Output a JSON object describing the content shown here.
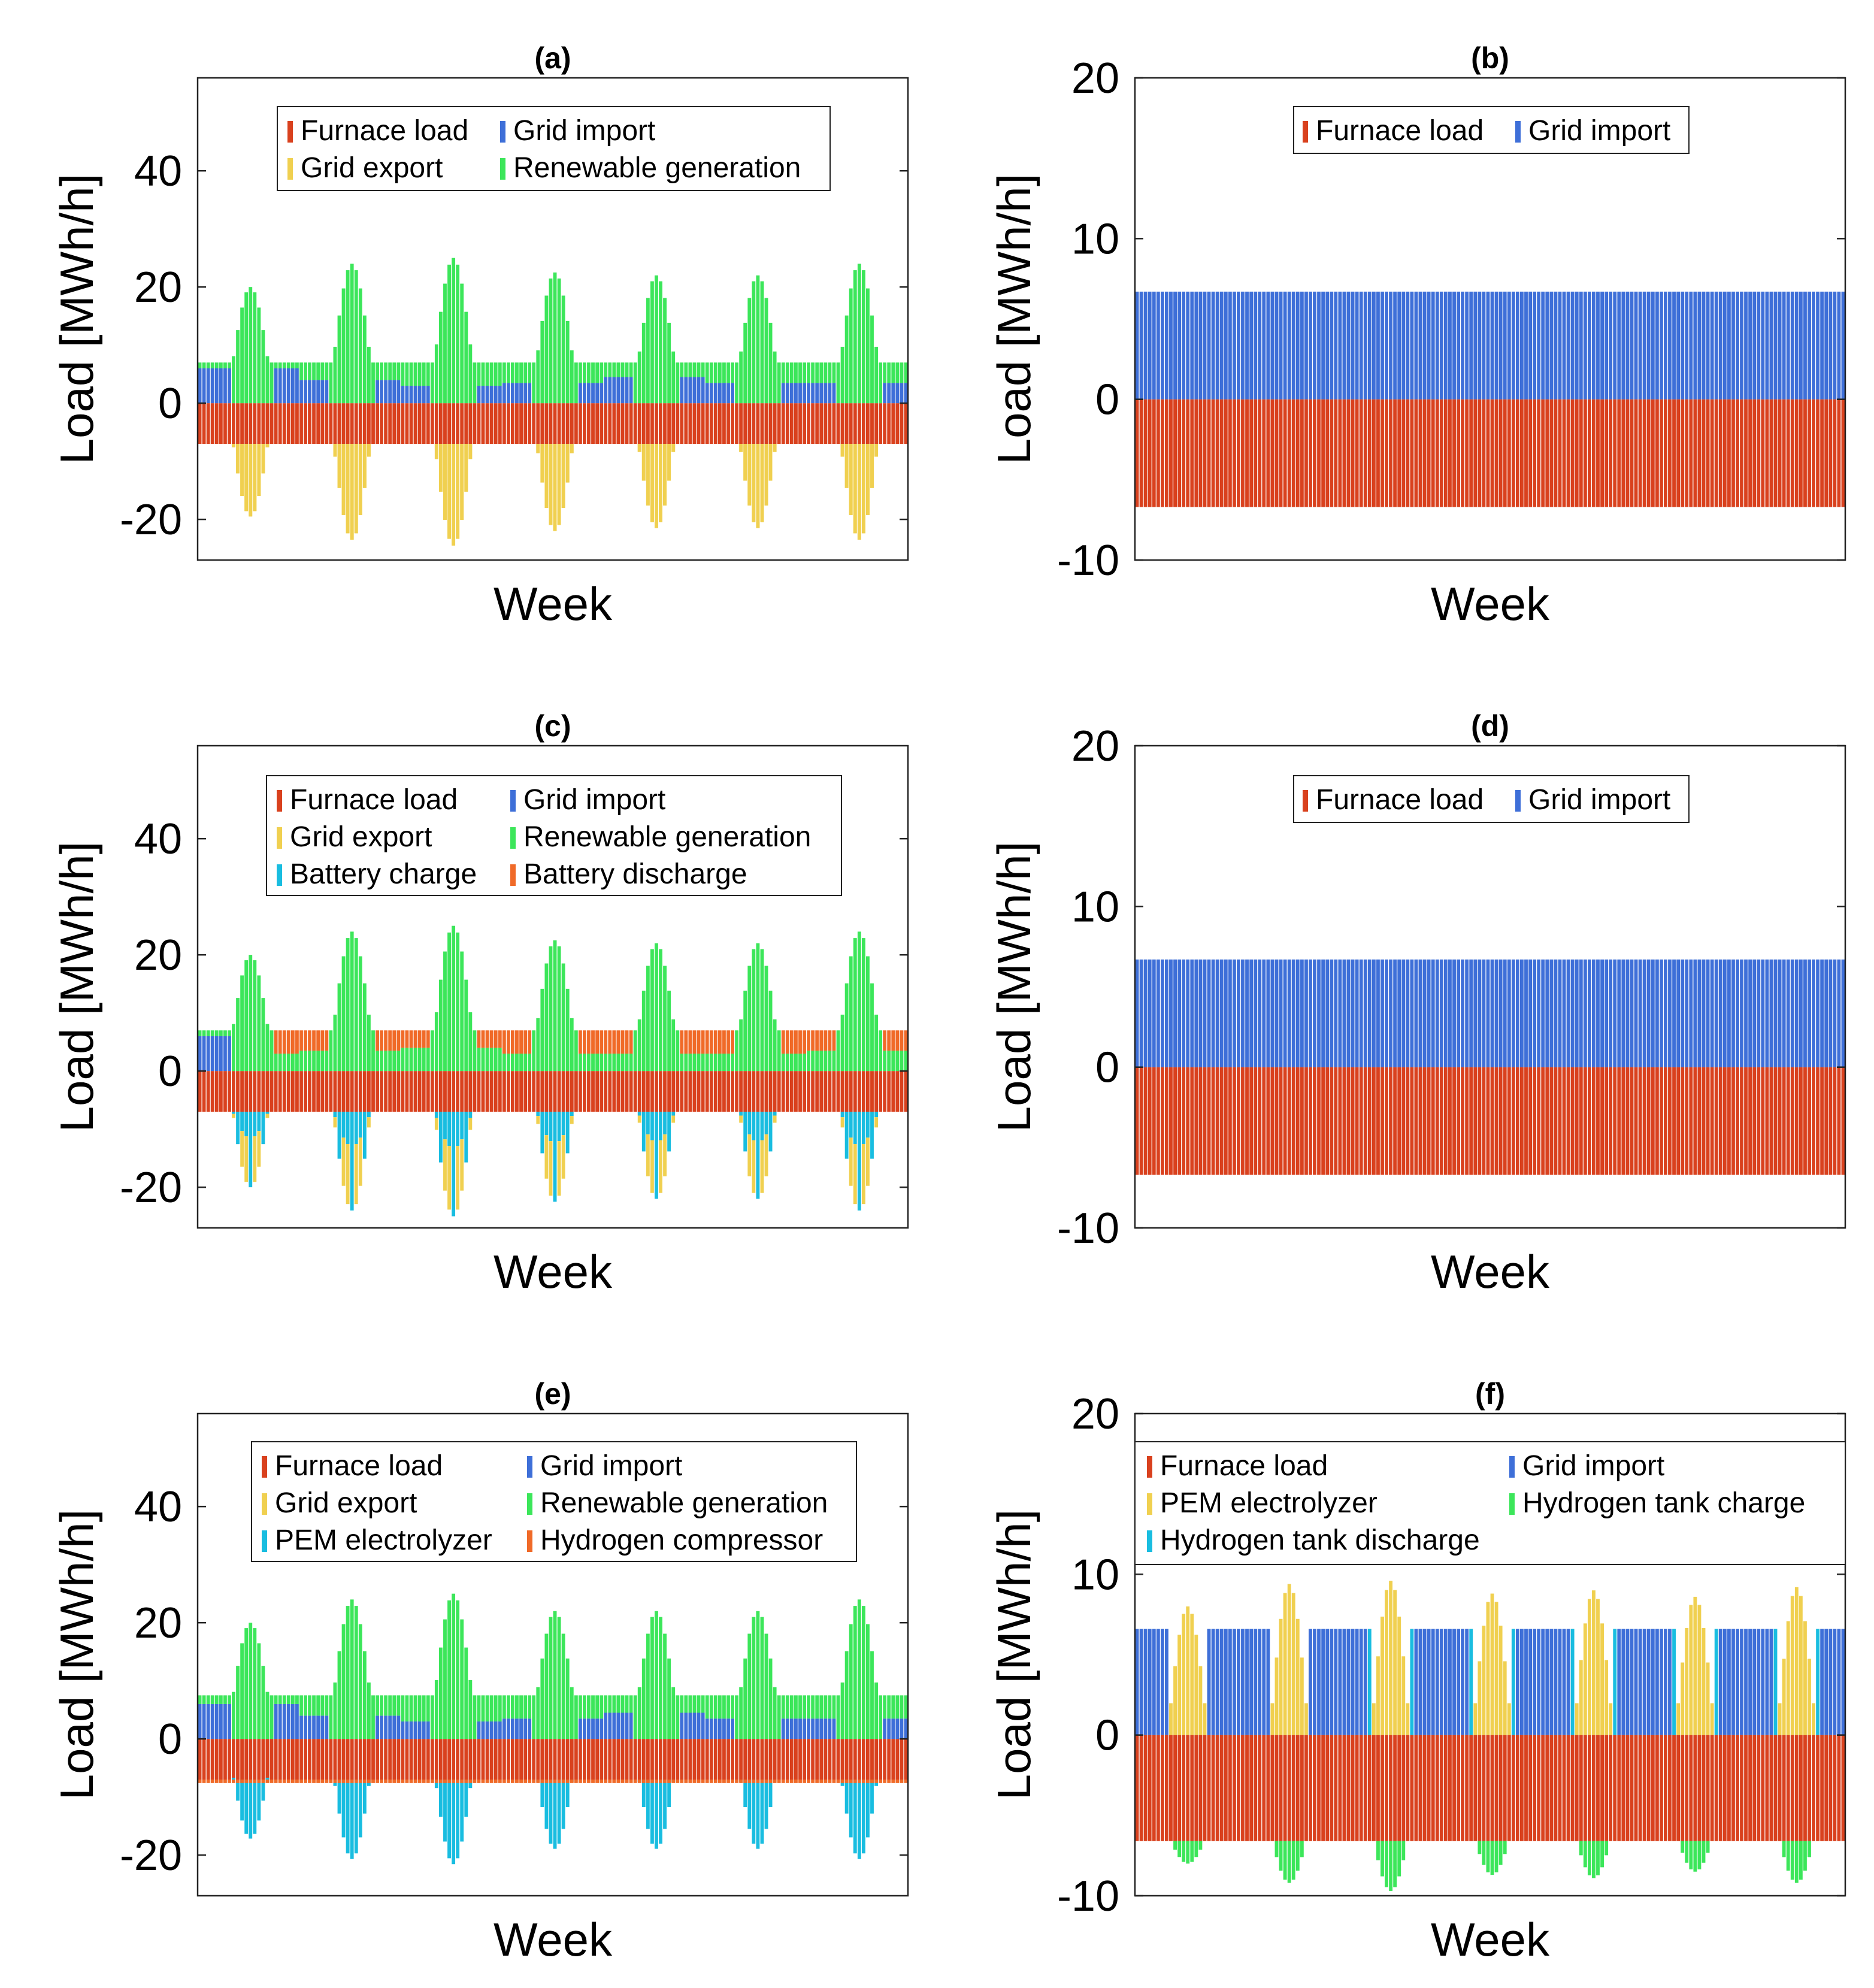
{
  "colors": {
    "furnace": "#d9411e",
    "grid_import": "#3e6fd8",
    "grid_export": "#f0d050",
    "renewable": "#3ce65a",
    "battery_charge": "#19bde0",
    "battery_discharge": "#f06a28",
    "pem": "#19bde0",
    "compressor": "#f06a28",
    "pem_f": "#f0d050",
    "tank_charge": "#3ce65a",
    "tank_discharge": "#19bde0"
  },
  "chart_data": [
    {
      "id": "a",
      "title": "(a)",
      "type": "bar",
      "stacked": true,
      "xlabel": "Week",
      "ylabel": "Load [MWh/h]",
      "ylim": [
        -27,
        56
      ],
      "yticks": [
        -20,
        0,
        20,
        40
      ],
      "legend": [
        {
          "label": "Furnace load",
          "color_key": "furnace"
        },
        {
          "label": "Grid import",
          "color_key": "grid_import"
        },
        {
          "label": "Grid export",
          "color_key": "grid_export"
        },
        {
          "label": "Renewable generation",
          "color_key": "renewable"
        }
      ],
      "profile": {
        "hours": 168,
        "furnace": -7,
        "total_positive": 7,
        "day_peaks": [
          20,
          24,
          25,
          22.5,
          22,
          22,
          24
        ],
        "night_import": [
          6,
          4,
          3,
          3.5,
          4.5,
          3.5,
          3.5
        ],
        "export_mirror": true
      }
    },
    {
      "id": "b",
      "title": "(b)",
      "type": "bar",
      "stacked": true,
      "xlabel": "Week",
      "ylabel": "Load [MWh/h]",
      "ylim": [
        -10,
        20
      ],
      "yticks": [
        -10,
        0,
        10,
        20
      ],
      "legend": [
        {
          "label": "Furnace load",
          "color_key": "furnace"
        },
        {
          "label": "Grid import",
          "color_key": "grid_import"
        }
      ],
      "profile": {
        "hours": 168,
        "furnace": -6.7,
        "grid_import": 6.7
      }
    },
    {
      "id": "c",
      "title": "(c)",
      "type": "bar",
      "stacked": true,
      "xlabel": "Week",
      "ylabel": "Load [MWh/h]",
      "ylim": [
        -27,
        56
      ],
      "yticks": [
        -20,
        0,
        20,
        40
      ],
      "legend": [
        {
          "label": "Furnace load",
          "color_key": "furnace"
        },
        {
          "label": "Grid import",
          "color_key": "grid_import"
        },
        {
          "label": "Grid export",
          "color_key": "grid_export"
        },
        {
          "label": "Renewable generation",
          "color_key": "renewable"
        },
        {
          "label": "Battery charge",
          "color_key": "battery_charge"
        },
        {
          "label": "Battery discharge",
          "color_key": "battery_discharge"
        }
      ],
      "profile": {
        "hours": 168,
        "furnace": -7,
        "total_positive": 7,
        "day_peaks": [
          20,
          24,
          25,
          22.5,
          22,
          22,
          24
        ],
        "night_renewable": [
          3,
          3.5,
          4,
          3,
          3,
          3,
          3.5
        ],
        "battery_charge_share": 0.45
      }
    },
    {
      "id": "d",
      "title": "(d)",
      "type": "bar",
      "stacked": true,
      "xlabel": "Week",
      "ylabel": "Load [MWh/h]",
      "ylim": [
        -10,
        20
      ],
      "yticks": [
        -10,
        0,
        10,
        20
      ],
      "legend": [
        {
          "label": "Furnace load",
          "color_key": "furnace"
        },
        {
          "label": "Grid import",
          "color_key": "grid_import"
        }
      ],
      "profile": {
        "hours": 168,
        "furnace": -6.7,
        "grid_import": 6.7
      }
    },
    {
      "id": "e",
      "title": "(e)",
      "type": "bar",
      "stacked": true,
      "xlabel": "Week",
      "ylabel": "Load [MWh/h]",
      "ylim": [
        -27,
        56
      ],
      "yticks": [
        -20,
        0,
        20,
        40
      ],
      "legend": [
        {
          "label": "Furnace load",
          "color_key": "furnace"
        },
        {
          "label": "Grid import",
          "color_key": "grid_import"
        },
        {
          "label": "Grid export",
          "color_key": "grid_export"
        },
        {
          "label": "Renewable generation",
          "color_key": "renewable"
        },
        {
          "label": "PEM electrolyzer",
          "color_key": "pem"
        },
        {
          "label": "Hydrogen compressor",
          "color_key": "compressor"
        }
      ],
      "profile": {
        "hours": 168,
        "furnace": -7,
        "total_positive": 7.5,
        "day_peaks": [
          20,
          24,
          25,
          22,
          22,
          22,
          24
        ],
        "night_import": [
          6,
          4,
          3,
          3.5,
          4.5,
          3.5,
          3.5
        ],
        "pem_mirror": true
      }
    },
    {
      "id": "f",
      "title": "(f)",
      "type": "bar",
      "stacked": true,
      "xlabel": "Week",
      "ylabel": "Load [MWh/h]",
      "ylim": [
        -10,
        20
      ],
      "yticks": [
        -10,
        0,
        10,
        20
      ],
      "legend": [
        {
          "label": "Furnace load",
          "color_key": "furnace"
        },
        {
          "label": "Grid import",
          "color_key": "grid_import"
        },
        {
          "label": "PEM electrolyzer",
          "color_key": "pem_f"
        },
        {
          "label": "Hydrogen tank charge",
          "color_key": "tank_charge"
        },
        {
          "label": "Hydrogen tank discharge",
          "color_key": "tank_discharge"
        }
      ],
      "profile": {
        "hours": 168,
        "furnace": -6.6,
        "grid_import": 6.6,
        "pem_peaks": [
          8,
          9.4,
          9.6,
          8.8,
          9,
          8.6,
          9.2
        ],
        "tank_charge_min": [
          -8,
          -9.2,
          -9.7,
          -8.7,
          -8.9,
          -8.5,
          -9.2
        ]
      }
    }
  ]
}
